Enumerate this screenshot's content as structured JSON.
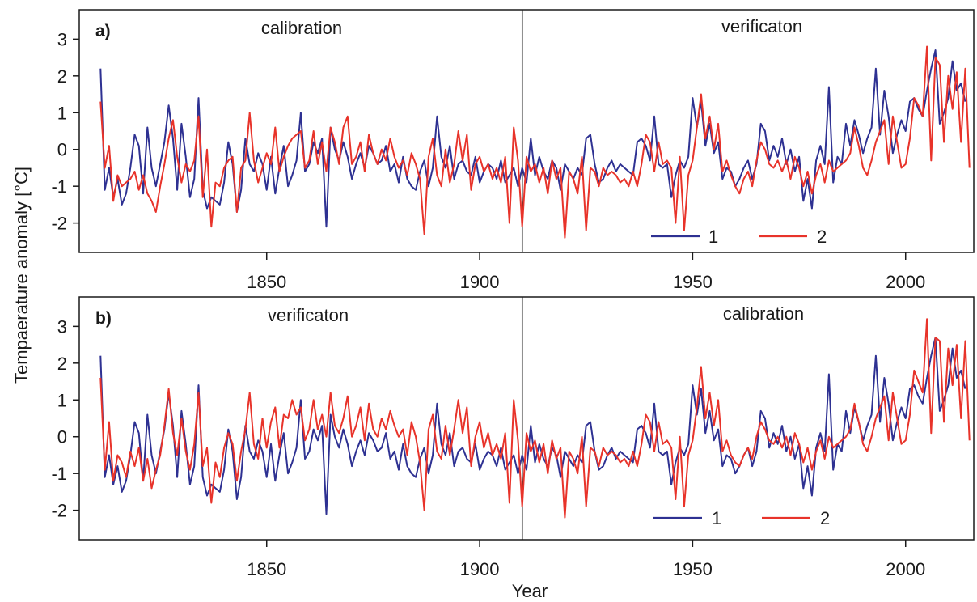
{
  "colors": {
    "series1": "#2e3192",
    "series2": "#e8332a",
    "axis": "#1a1a1a"
  },
  "axes": {
    "xlabel": "Year",
    "ylabel": "Tempaerature anomaly [°C]"
  },
  "chart_data": [
    {
      "type": "line",
      "panel_label": "a)",
      "period_labels": [
        "calibration",
        "verificaton"
      ],
      "split_year": 1910,
      "xlim": [
        1806,
        2016
      ],
      "ylim": [
        -2.8,
        3.8
      ],
      "yticks": [
        -2,
        -1,
        0,
        1,
        2,
        3
      ],
      "xticks": [
        1850,
        1900,
        1950,
        2000
      ],
      "legend": {
        "position": "bottom-right",
        "entries": [
          "1",
          "2"
        ]
      },
      "x_start": 1811,
      "series": [
        {
          "name": "1",
          "values": [
            2.2,
            -1.1,
            -0.5,
            -1.3,
            -0.8,
            -1.5,
            -1.2,
            -0.5,
            0.4,
            0.1,
            -1.2,
            0.6,
            -0.5,
            -1.0,
            -0.4,
            0.2,
            1.2,
            0.3,
            -1.1,
            0.7,
            -0.2,
            -1.3,
            -0.8,
            1.4,
            -1.1,
            -1.6,
            -1.3,
            -1.4,
            -1.5,
            -0.9,
            0.2,
            -0.4,
            -1.7,
            -1.1,
            0.3,
            -0.4,
            -0.6,
            -0.1,
            -0.4,
            -1.1,
            -0.2,
            -1.2,
            -0.5,
            0.1,
            -1.0,
            -0.7,
            -0.3,
            1.0,
            -0.6,
            -0.4,
            0.2,
            -0.1,
            0.3,
            -2.1,
            0.6,
            0.0,
            -0.3,
            0.2,
            -0.2,
            -0.8,
            -0.4,
            -0.1,
            -0.5,
            0.1,
            -0.1,
            -0.4,
            -0.3,
            0.1,
            -0.6,
            -0.4,
            -0.9,
            -0.2,
            -0.8,
            -1.0,
            -1.1,
            -0.6,
            -0.3,
            -1.0,
            -0.5,
            0.9,
            -0.2,
            -0.5,
            0.1,
            -0.8,
            -0.4,
            -0.3,
            -0.6,
            -0.7,
            -0.2,
            -0.9,
            -0.6,
            -0.4,
            -0.5,
            -0.8,
            -0.3,
            -0.9,
            -0.7,
            -0.5,
            -1.0,
            -0.5,
            -0.9,
            0.3,
            -0.7,
            -0.2,
            -0.6,
            -0.8,
            -0.3,
            -0.5,
            -1.1,
            -0.4,
            -0.6,
            -0.8,
            -0.5,
            -0.7,
            0.3,
            0.4,
            -0.4,
            -0.9,
            -0.8,
            -0.5,
            -0.3,
            -0.6,
            -0.4,
            -0.5,
            -0.6,
            -0.7,
            0.2,
            0.3,
            0.1,
            -0.3,
            0.9,
            -0.4,
            -0.5,
            -0.4,
            -1.3,
            -0.7,
            -0.3,
            -0.5,
            -0.2,
            1.4,
            0.6,
            1.3,
            0.1,
            0.7,
            -0.1,
            0.2,
            -0.8,
            -0.5,
            -0.6,
            -1.0,
            -0.8,
            -0.5,
            -0.3,
            -0.8,
            -0.4,
            0.7,
            0.5,
            -0.3,
            0.1,
            -0.2,
            0.3,
            -0.4,
            0.0,
            -0.6,
            -0.2,
            -1.4,
            -0.8,
            -1.6,
            -0.3,
            0.1,
            -0.4,
            1.7,
            -0.9,
            -0.2,
            -0.4,
            0.7,
            0.1,
            0.8,
            0.4,
            -0.1,
            0.3,
            0.6,
            2.2,
            0.4,
            1.6,
            0.9,
            -0.1,
            0.4,
            0.8,
            0.5,
            1.3,
            1.4,
            1.1,
            0.9,
            1.6,
            2.2,
            2.7,
            0.7,
            1.0,
            1.4,
            2.4,
            1.6,
            1.8,
            1.3
          ]
        },
        {
          "name": "2",
          "values": [
            1.3,
            -0.5,
            0.1,
            -1.4,
            -0.7,
            -1.0,
            -0.9,
            -0.8,
            -0.6,
            -1.1,
            -0.7,
            -1.2,
            -1.4,
            -1.7,
            -1.0,
            -0.4,
            0.3,
            0.8,
            -0.2,
            -0.9,
            -0.4,
            -0.6,
            -0.3,
            0.9,
            -1.3,
            0.0,
            -2.1,
            -0.9,
            -1.0,
            -0.5,
            -0.3,
            -0.2,
            -1.7,
            -0.5,
            -0.3,
            1.0,
            -0.3,
            -0.9,
            -0.5,
            -0.1,
            -0.4,
            0.6,
            -0.6,
            -0.2,
            0.1,
            0.3,
            0.4,
            0.5,
            -0.5,
            -0.3,
            0.5,
            -0.4,
            0.2,
            -0.6,
            0.6,
            0.2,
            -0.4,
            0.6,
            0.9,
            -0.4,
            -0.2,
            0.2,
            -0.6,
            0.4,
            -0.1,
            -0.4,
            0.0,
            -0.3,
            0.3,
            -0.2,
            -0.5,
            -0.3,
            -0.7,
            -0.1,
            -0.4,
            -0.8,
            -2.3,
            -0.2,
            0.3,
            -0.7,
            -1.0,
            0.0,
            -0.9,
            -0.4,
            0.5,
            -0.3,
            0.4,
            -1.1,
            -0.4,
            -0.2,
            -0.6,
            -0.4,
            -0.8,
            -0.5,
            -0.9,
            -0.2,
            -2.0,
            0.6,
            -0.3,
            -2.1,
            -0.2,
            -0.6,
            -0.4,
            -0.9,
            -0.5,
            -1.2,
            -0.3,
            -0.8,
            -0.5,
            -2.4,
            -0.6,
            -0.8,
            -1.2,
            -0.2,
            -2.2,
            -0.5,
            -0.6,
            -1.0,
            -0.5,
            -0.7,
            -0.6,
            -0.7,
            -0.9,
            -0.8,
            -1.0,
            -0.6,
            -1.0,
            -0.4,
            0.4,
            0.2,
            -0.6,
            0.2,
            -0.4,
            -0.3,
            -0.5,
            -2.0,
            -0.2,
            -2.2,
            -0.7,
            -0.3,
            0.6,
            1.5,
            0.3,
            0.9,
            0.0,
            0.7,
            -0.6,
            -0.3,
            -0.7,
            -1.0,
            -1.2,
            -0.8,
            -0.6,
            -1.0,
            -0.3,
            0.2,
            0.0,
            -0.4,
            -0.5,
            -0.3,
            -0.6,
            -0.3,
            -0.8,
            -0.2,
            -0.5,
            -1.0,
            -0.6,
            -1.2,
            -0.7,
            -0.4,
            -0.9,
            -0.3,
            -0.6,
            -0.5,
            -0.4,
            -0.3,
            -0.1,
            0.6,
            0.1,
            -0.5,
            -0.7,
            -0.3,
            0.2,
            0.5,
            0.8,
            -0.4,
            0.9,
            0.2,
            -0.5,
            -0.4,
            0.3,
            1.4,
            1.2,
            0.9,
            2.8,
            -0.3,
            2.5,
            2.3,
            0.2,
            2.0,
            1.1,
            2.1,
            0.2,
            2.2,
            -0.5
          ]
        }
      ]
    },
    {
      "type": "line",
      "panel_label": "b)",
      "period_labels": [
        "verificaton",
        "calibration"
      ],
      "split_year": 1910,
      "xlim": [
        1806,
        2016
      ],
      "ylim": [
        -2.8,
        3.8
      ],
      "yticks": [
        -2,
        -1,
        0,
        1,
        2,
        3
      ],
      "xticks": [
        1850,
        1900,
        1950,
        2000
      ],
      "legend": {
        "position": "bottom-right",
        "entries": [
          "1",
          "2"
        ]
      },
      "x_start": 1811,
      "series": [
        {
          "name": "1",
          "values": [
            2.2,
            -1.1,
            -0.5,
            -1.3,
            -0.8,
            -1.5,
            -1.2,
            -0.5,
            0.4,
            0.1,
            -1.2,
            0.6,
            -0.5,
            -1.0,
            -0.4,
            0.2,
            1.2,
            0.3,
            -1.1,
            0.7,
            -0.2,
            -1.3,
            -0.8,
            1.4,
            -1.1,
            -1.6,
            -1.3,
            -1.4,
            -1.5,
            -0.9,
            0.2,
            -0.4,
            -1.7,
            -1.1,
            0.3,
            -0.4,
            -0.6,
            -0.1,
            -0.4,
            -1.1,
            -0.2,
            -1.2,
            -0.5,
            0.1,
            -1.0,
            -0.7,
            -0.3,
            1.0,
            -0.6,
            -0.4,
            0.2,
            -0.1,
            0.3,
            -2.1,
            0.6,
            0.0,
            -0.3,
            0.2,
            -0.2,
            -0.8,
            -0.4,
            -0.1,
            -0.5,
            0.1,
            -0.1,
            -0.4,
            -0.3,
            0.1,
            -0.6,
            -0.4,
            -0.9,
            -0.2,
            -0.8,
            -1.0,
            -1.1,
            -0.6,
            -0.3,
            -1.0,
            -0.5,
            0.9,
            -0.2,
            -0.5,
            0.1,
            -0.8,
            -0.4,
            -0.3,
            -0.6,
            -0.7,
            -0.2,
            -0.9,
            -0.6,
            -0.4,
            -0.5,
            -0.8,
            -0.3,
            -0.9,
            -0.7,
            -0.5,
            -1.0,
            -0.5,
            -0.9,
            0.3,
            -0.7,
            -0.2,
            -0.6,
            -0.8,
            -0.3,
            -0.5,
            -1.1,
            -0.4,
            -0.6,
            -0.8,
            -0.5,
            -0.7,
            0.3,
            0.4,
            -0.4,
            -0.9,
            -0.8,
            -0.5,
            -0.3,
            -0.6,
            -0.4,
            -0.5,
            -0.6,
            -0.7,
            0.2,
            0.3,
            0.1,
            -0.3,
            0.9,
            -0.4,
            -0.5,
            -0.4,
            -1.3,
            -0.7,
            -0.3,
            -0.5,
            -0.2,
            1.4,
            0.6,
            1.3,
            0.1,
            0.7,
            -0.1,
            0.2,
            -0.8,
            -0.5,
            -0.6,
            -1.0,
            -0.8,
            -0.5,
            -0.3,
            -0.8,
            -0.4,
            0.7,
            0.5,
            -0.3,
            0.1,
            -0.2,
            0.3,
            -0.4,
            0.0,
            -0.6,
            -0.2,
            -1.4,
            -0.8,
            -1.6,
            -0.3,
            0.1,
            -0.4,
            1.7,
            -0.9,
            -0.2,
            -0.4,
            0.7,
            0.1,
            0.8,
            0.4,
            -0.1,
            0.3,
            0.6,
            2.2,
            0.4,
            1.6,
            0.9,
            -0.1,
            0.4,
            0.8,
            0.5,
            1.3,
            1.4,
            1.1,
            0.9,
            1.6,
            2.2,
            2.7,
            0.7,
            1.0,
            1.4,
            2.4,
            1.6,
            1.8,
            1.3
          ]
        },
        {
          "name": "2",
          "values": [
            1.6,
            -0.9,
            0.4,
            -1.2,
            -0.5,
            -0.7,
            -1.1,
            -0.4,
            -0.8,
            -0.3,
            -1.2,
            -0.6,
            -1.4,
            -0.9,
            -0.5,
            0.3,
            1.3,
            0.1,
            -0.5,
            0.5,
            -0.4,
            -0.9,
            -0.2,
            1.2,
            -0.8,
            -0.3,
            -1.8,
            -0.7,
            -1.1,
            -0.3,
            0.1,
            -0.2,
            -1.2,
            -0.4,
            0.2,
            1.2,
            -0.2,
            -0.6,
            0.5,
            -0.3,
            0.4,
            0.8,
            -0.3,
            0.6,
            0.5,
            1.0,
            0.6,
            0.8,
            -0.1,
            0.2,
            1.0,
            0.2,
            0.6,
            0.0,
            1.2,
            0.3,
            0.1,
            0.5,
            1.1,
            0.0,
            0.3,
            0.8,
            -0.1,
            0.9,
            0.2,
            0.0,
            0.5,
            0.2,
            0.7,
            0.3,
            0.0,
            0.2,
            -0.5,
            0.4,
            0.0,
            -0.7,
            -2.0,
            0.2,
            0.6,
            -0.4,
            -0.6,
            0.3,
            -0.5,
            0.2,
            1.0,
            0.1,
            0.8,
            -0.8,
            0.0,
            0.4,
            -0.3,
            0.1,
            -0.5,
            -0.2,
            -0.6,
            0.1,
            -1.8,
            1.0,
            -0.1,
            -1.9,
            0.1,
            -0.4,
            -0.1,
            -0.7,
            -0.2,
            -1.0,
            -0.1,
            -0.6,
            -0.3,
            -2.2,
            -0.4,
            -0.6,
            -1.0,
            0.0,
            -1.9,
            -0.3,
            -0.4,
            -0.8,
            -0.3,
            -0.5,
            -0.4,
            -0.5,
            -0.7,
            -0.6,
            -0.8,
            -0.4,
            -0.8,
            -0.2,
            0.6,
            0.4,
            -0.4,
            0.4,
            -0.2,
            -0.1,
            -0.3,
            -1.7,
            0.0,
            -1.9,
            -0.5,
            -0.1,
            0.8,
            1.9,
            0.5,
            1.2,
            0.3,
            1.0,
            -0.4,
            -0.1,
            -0.5,
            -0.7,
            -0.8,
            -0.5,
            -0.3,
            -0.6,
            0.0,
            0.4,
            0.2,
            -0.1,
            -0.2,
            0.0,
            -0.3,
            0.0,
            -0.5,
            0.1,
            -0.2,
            -0.7,
            -0.3,
            -0.9,
            -0.4,
            -0.1,
            -0.6,
            0.0,
            -0.3,
            -0.2,
            -0.1,
            0.0,
            0.2,
            0.9,
            0.4,
            -0.2,
            -0.4,
            0.0,
            0.5,
            0.8,
            1.1,
            -0.1,
            1.2,
            0.5,
            -0.2,
            -0.1,
            0.6,
            1.8,
            1.5,
            1.2,
            3.2,
            0.1,
            2.7,
            2.6,
            0.4,
            2.4,
            1.4,
            2.5,
            0.5,
            2.6,
            -0.1
          ]
        }
      ]
    }
  ]
}
